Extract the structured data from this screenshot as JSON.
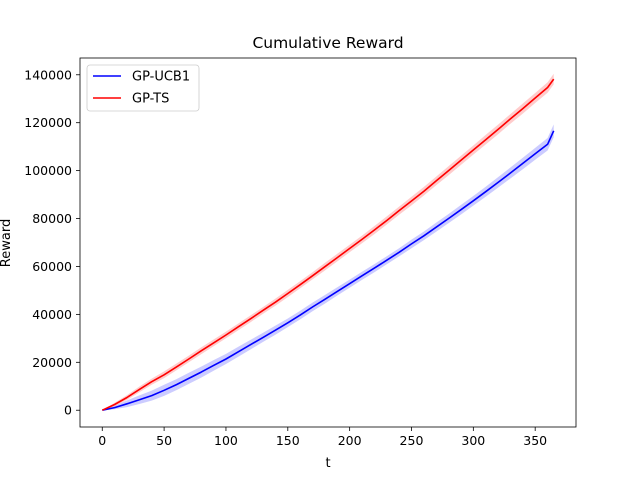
{
  "chart_data": {
    "type": "line",
    "title": "Cumulative Reward",
    "xlabel": "t",
    "ylabel": "Reward",
    "xlim": [
      -18,
      383
    ],
    "ylim": [
      -7000,
      147000
    ],
    "xticks": [
      0,
      50,
      100,
      150,
      200,
      250,
      300,
      350
    ],
    "yticks": [
      0,
      20000,
      40000,
      60000,
      80000,
      100000,
      120000,
      140000
    ],
    "xtick_labels": [
      "0",
      "50",
      "100",
      "150",
      "200",
      "250",
      "300",
      "350"
    ],
    "ytick_labels": [
      "0",
      "20000",
      "40000",
      "60000",
      "80000",
      "100000",
      "120000",
      "140000"
    ],
    "grid": false,
    "legend_position": "top-left",
    "series": [
      {
        "name": "GP-UCB1",
        "color": "#0000ff",
        "x": [
          0,
          10,
          20,
          30,
          40,
          50,
          60,
          70,
          80,
          90,
          100,
          110,
          120,
          130,
          140,
          150,
          160,
          170,
          180,
          190,
          200,
          210,
          220,
          230,
          240,
          250,
          260,
          270,
          280,
          290,
          300,
          310,
          320,
          330,
          340,
          350,
          360,
          365
        ],
        "y": [
          0,
          1100,
          2700,
          4400,
          6100,
          8300,
          10700,
          13300,
          15900,
          18700,
          21400,
          24400,
          27400,
          30400,
          33400,
          36500,
          39700,
          43100,
          46300,
          49600,
          52800,
          56100,
          59300,
          62600,
          65900,
          69400,
          72800,
          76400,
          80000,
          83700,
          87400,
          91200,
          95100,
          99000,
          103000,
          107000,
          111000,
          116600
        ],
        "band": [
          0,
          700,
          1400,
          1800,
          2100,
          2300,
          2300,
          2300,
          2300,
          2200,
          2100,
          2100,
          2000,
          1900,
          1900,
          1800,
          1800,
          1800,
          1800,
          1700,
          1700,
          1700,
          1700,
          1700,
          1700,
          1800,
          1800,
          1900,
          1900,
          2000,
          2000,
          2100,
          2200,
          2300,
          2400,
          2500,
          2600,
          2700
        ]
      },
      {
        "name": "GP-TS",
        "color": "#ff0000",
        "x": [
          0,
          10,
          20,
          30,
          40,
          50,
          60,
          70,
          80,
          90,
          100,
          110,
          120,
          130,
          140,
          150,
          160,
          170,
          180,
          190,
          200,
          210,
          220,
          230,
          240,
          250,
          260,
          270,
          280,
          290,
          300,
          310,
          320,
          330,
          340,
          350,
          360,
          365
        ],
        "y": [
          0,
          2400,
          5300,
          8700,
          11900,
          14800,
          18100,
          21400,
          24800,
          28100,
          31400,
          34800,
          38200,
          41700,
          45100,
          48700,
          52400,
          56100,
          59900,
          63700,
          67500,
          71300,
          75200,
          79200,
          83300,
          87300,
          91400,
          95700,
          100000,
          104300,
          108600,
          112900,
          117200,
          121600,
          125900,
          130300,
          134700,
          138200
        ],
        "band": [
          0,
          700,
          1000,
          1200,
          1300,
          1400,
          1400,
          1400,
          1400,
          1400,
          1400,
          1400,
          1400,
          1400,
          1500,
          1500,
          1500,
          1500,
          1600,
          1600,
          1600,
          1600,
          1700,
          1700,
          1700,
          1800,
          1800,
          1800,
          1900,
          1900,
          1900,
          2000,
          2000,
          2000,
          2100,
          2100,
          2200,
          2200
        ]
      }
    ]
  }
}
